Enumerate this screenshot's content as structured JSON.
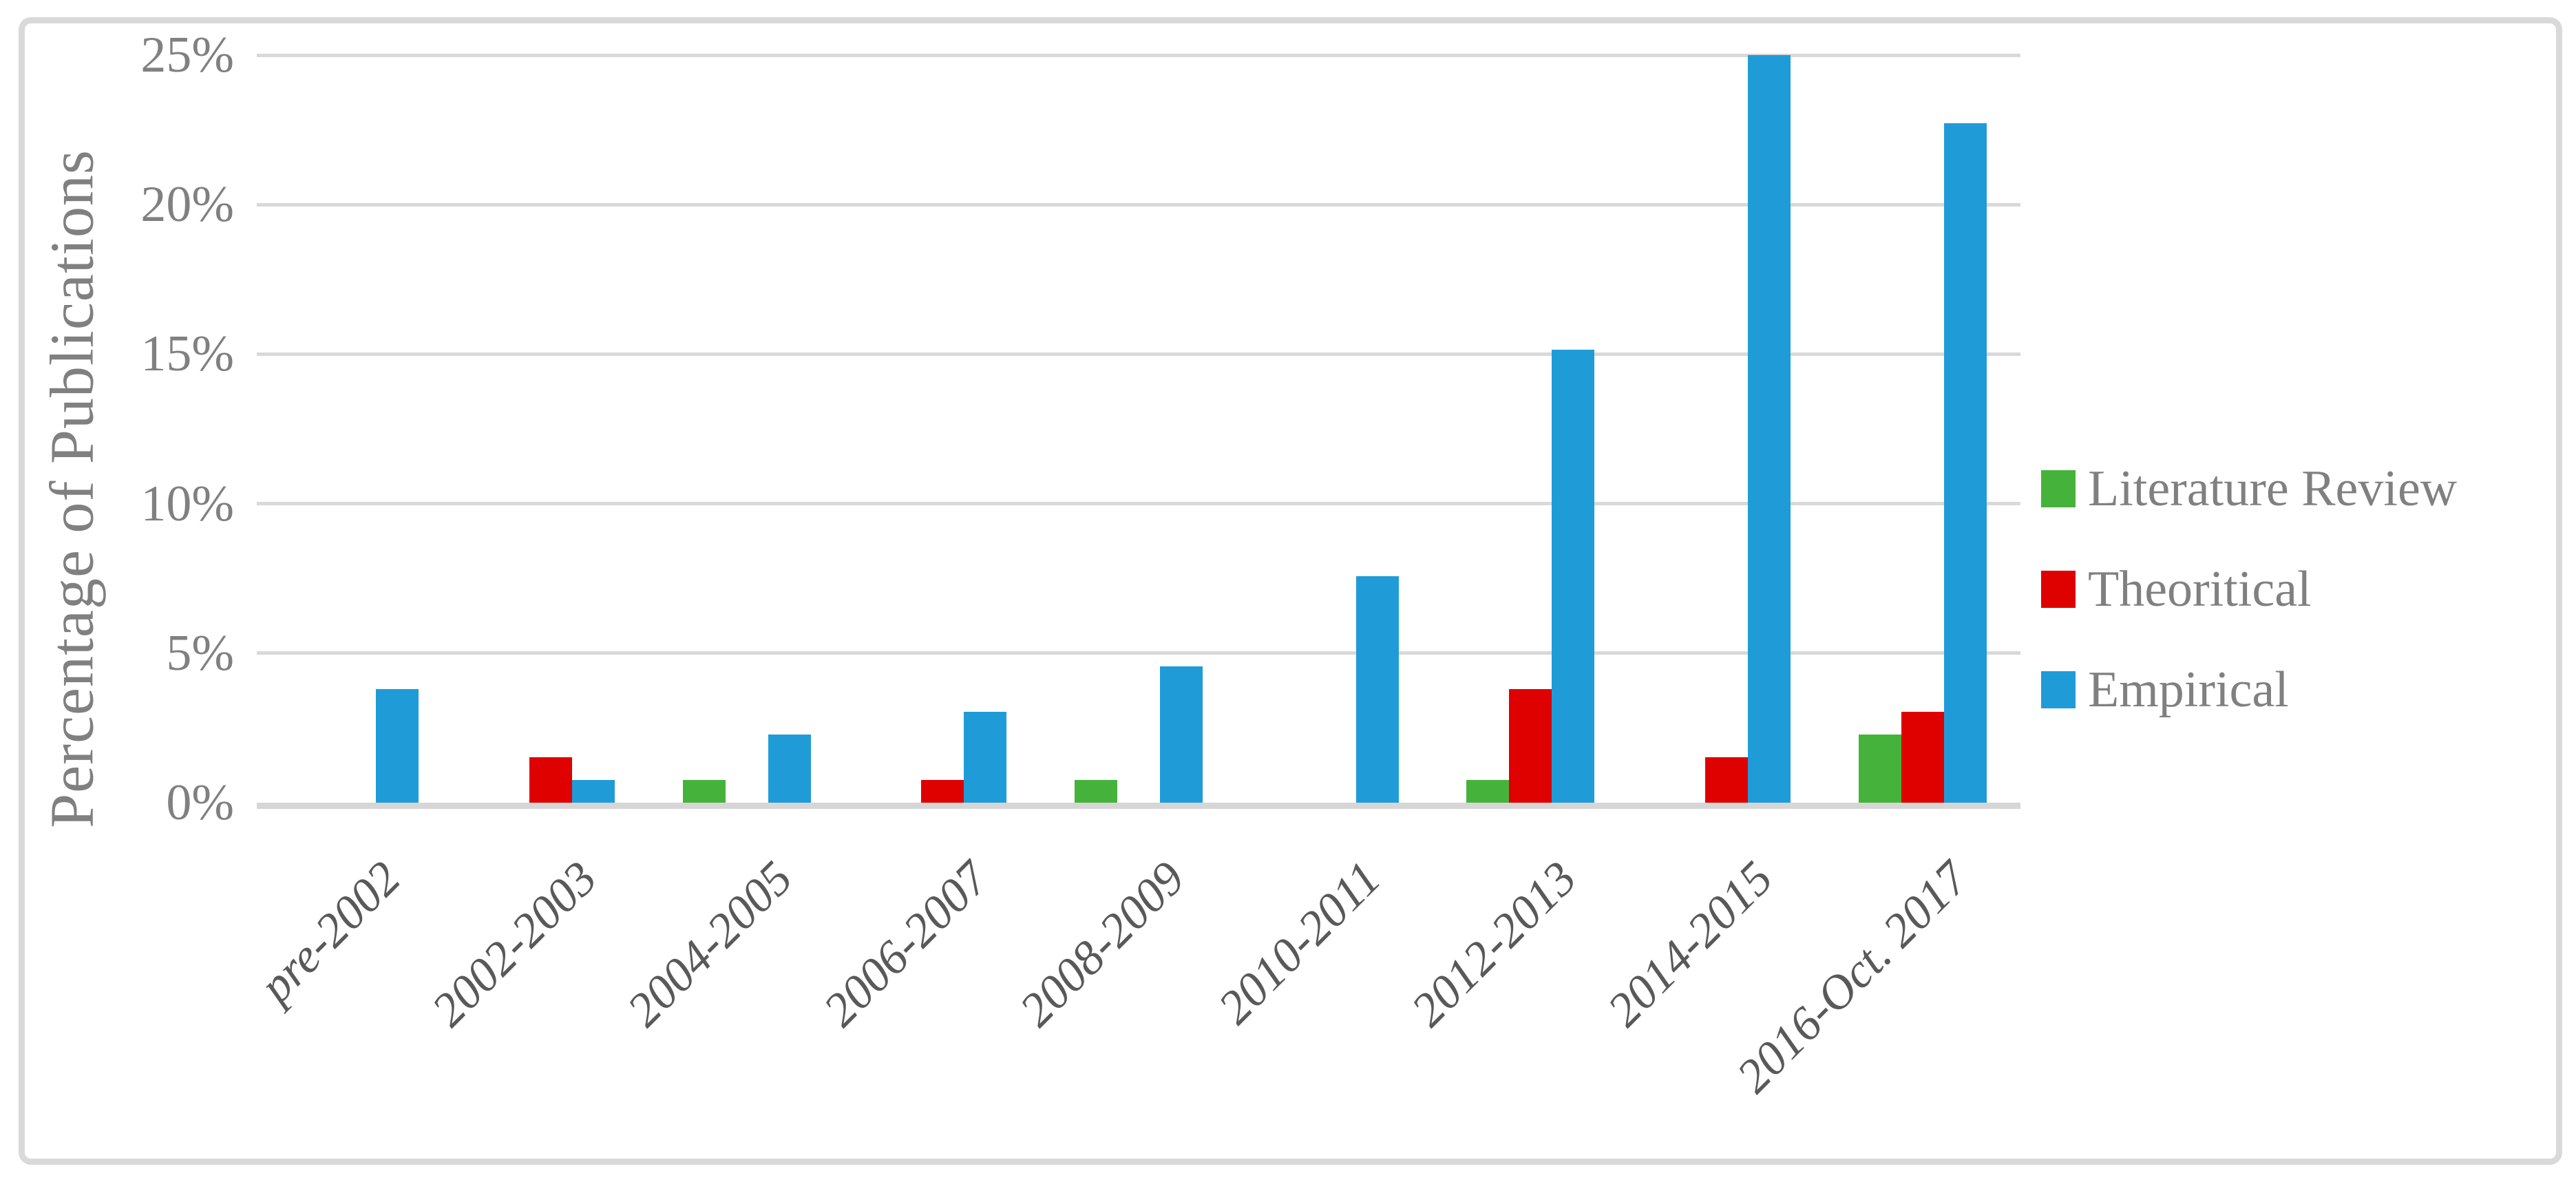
{
  "chart_data": {
    "type": "bar",
    "title": "",
    "xlabel": "",
    "ylabel": "Percentage of Publications",
    "units": "percent",
    "categories": [
      "pre-2002",
      "2002-2003",
      "2004-2005",
      "2006-2007",
      "2008-2009",
      "2010-2011",
      "2012-2013",
      "2014-2015",
      "2016-Oct. 2017"
    ],
    "series": [
      {
        "name": "Literature Review",
        "color": "#45B33B",
        "values": [
          0,
          0,
          0.76,
          0,
          0.76,
          0,
          0.76,
          0,
          2.27
        ]
      },
      {
        "name": "Theoritical",
        "color": "#DF0000",
        "values": [
          0,
          1.52,
          0,
          0.76,
          0,
          0,
          3.79,
          1.52,
          3.03
        ]
      },
      {
        "name": "Empirical",
        "color": "#1F9CD8",
        "values": [
          3.79,
          0.76,
          2.27,
          3.03,
          4.55,
          7.58,
          15.15,
          25.0,
          22.73
        ]
      }
    ],
    "y_ticks": [
      "0%",
      "5%",
      "10%",
      "15%",
      "20%",
      "25%"
    ],
    "y_tick_values": [
      0,
      5,
      10,
      15,
      20,
      25
    ],
    "ylim": [
      0,
      25
    ],
    "grid": "horizontal",
    "legend_position": "right",
    "colors": {
      "gridline": "#D9D9D9",
      "axis_text": "#808080",
      "category_text": "#595959",
      "frame_border": "#D9D9D9"
    }
  }
}
